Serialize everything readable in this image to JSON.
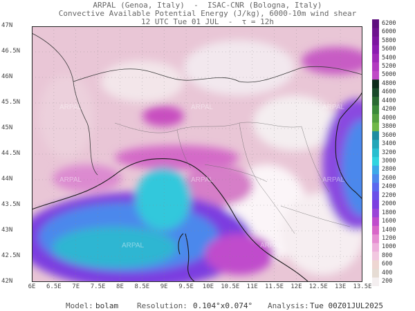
{
  "header": {
    "line1": "ARPAL (Genoa, Italy)  -  ISAC-CNR (Bologna, Italy)",
    "line2": "Convective Available Potential Energy (J/kg), 6000-10m wind shear",
    "line3": "12 UTC Tue 01 JUL  -  τ = 12h"
  },
  "map": {
    "lat_labels": [
      "47N",
      "46.5N",
      "46N",
      "45.5N",
      "45N",
      "44.5N",
      "44N",
      "43.5N",
      "43N",
      "42.5N",
      "42N"
    ],
    "lon_labels": [
      "6E",
      "6.5E",
      "7E",
      "7.5E",
      "8E",
      "8.5E",
      "9E",
      "9.5E",
      "10E",
      "10.5E",
      "11E",
      "11.5E",
      "12E",
      "12.5E",
      "13E",
      "13.5E"
    ],
    "watermark": "ARPAL"
  },
  "colorbar": {
    "labels": [
      "6200",
      "6000",
      "5800",
      "5600",
      "5400",
      "5200",
      "5000",
      "4800",
      "4600",
      "4400",
      "4200",
      "4000",
      "3800",
      "3600",
      "3400",
      "3200",
      "3000",
      "2800",
      "2600",
      "2400",
      "2200",
      "2000",
      "1800",
      "1600",
      "1400",
      "1200",
      "1000",
      "800",
      "600",
      "400",
      "200"
    ],
    "colors": [
      "#5e0f7e",
      "#6e128e",
      "#7d15a0",
      "#8c1cb0",
      "#a02ab8",
      "#b23ac0",
      "#c04ac6",
      "#0d2b1a",
      "#1a4a2a",
      "#2a6b32",
      "#3c8a3a",
      "#55a040",
      "#70b848",
      "#1e8ca0",
      "#22a6b8",
      "#28bed0",
      "#30d4e0",
      "#3ca8e8",
      "#4c88ec",
      "#5a68ee",
      "#6a50e8",
      "#7c3ee0",
      "#9a44d8",
      "#c04ccc",
      "#d866c8",
      "#e68ed2",
      "#eeb0dc",
      "#f2c8e0",
      "#eed6d2",
      "#e6dcd4",
      "#f4eff0"
    ]
  },
  "footer": {
    "model_label": "Model:",
    "model_value": "bolam",
    "resolution_label": "Resolution:",
    "resolution_value": "0.104°x0.074°",
    "analysis_label": "Analysis:",
    "analysis_value": "Tue 00Z01JUL2025"
  }
}
